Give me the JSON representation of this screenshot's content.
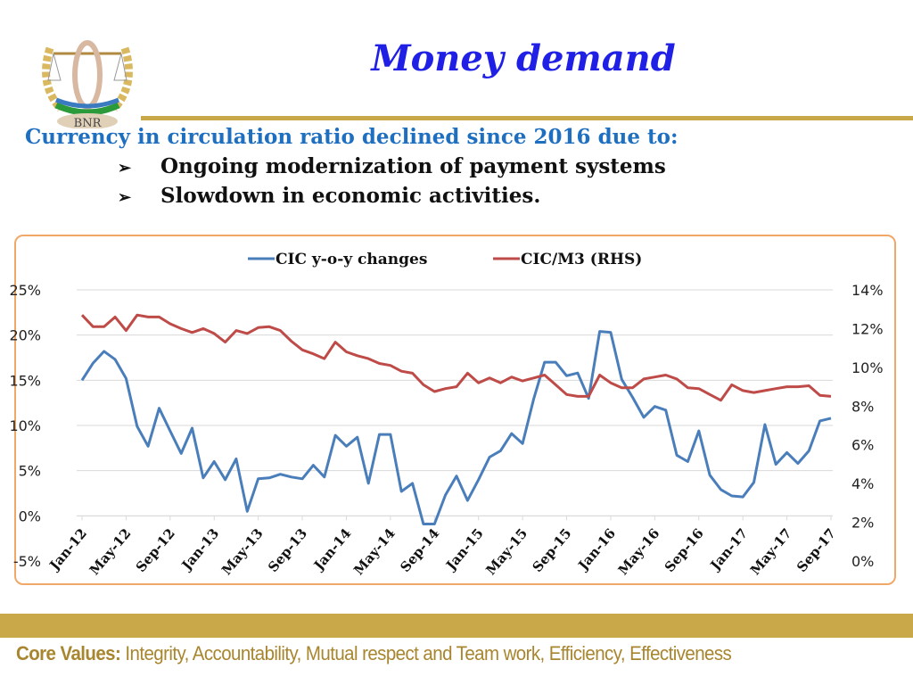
{
  "slide": {
    "title": "Money demand",
    "subtitle": "Currency in circulation ratio declined since 2016 due to:",
    "bullets": [
      "Ongoing modernization of payment systems",
      "Slowdown in economic activities."
    ],
    "bullet_icon": "arrow-right-icon",
    "logo_text": "BNR",
    "footer_label": "Core Values:",
    "footer_text": "Integrity, Accountability, Mutual respect and Team work, Efficiency, Effectiveness",
    "colors": {
      "title": "#1f1fe6",
      "subtitle": "#1f6fc0",
      "gold": "#c9a84a",
      "chart_border": "#f0a868"
    }
  },
  "chart_data": {
    "type": "line",
    "title": "",
    "legend_position": "top",
    "grid": true,
    "categories": [
      "Jan-12",
      "Feb-12",
      "Mar-12",
      "Apr-12",
      "May-12",
      "Jun-12",
      "Jul-12",
      "Aug-12",
      "Sep-12",
      "Oct-12",
      "Nov-12",
      "Dec-12",
      "Jan-13",
      "Feb-13",
      "Mar-13",
      "Apr-13",
      "May-13",
      "Jun-13",
      "Jul-13",
      "Aug-13",
      "Sep-13",
      "Oct-13",
      "Nov-13",
      "Dec-13",
      "Jan-14",
      "Feb-14",
      "Mar-14",
      "Apr-14",
      "May-14",
      "Jun-14",
      "Jul-14",
      "Aug-14",
      "Sep-14",
      "Oct-14",
      "Nov-14",
      "Dec-14",
      "Jan-15",
      "Feb-15",
      "Mar-15",
      "Apr-15",
      "May-15",
      "Jun-15",
      "Jul-15",
      "Aug-15",
      "Sep-15",
      "Oct-15",
      "Nov-15",
      "Dec-15",
      "Jan-16",
      "Feb-16",
      "Mar-16",
      "Apr-16",
      "May-16",
      "Jun-16",
      "Jul-16",
      "Aug-16",
      "Sep-16",
      "Oct-16",
      "Nov-16",
      "Dec-16",
      "Jan-17",
      "Feb-17",
      "Mar-17",
      "Apr-17",
      "May-17",
      "Jun-17",
      "Jul-17",
      "Aug-17",
      "Sep-17"
    ],
    "x_tick_labels": [
      "Jan-12",
      "May-12",
      "Sep-12",
      "Jan-13",
      "May-13",
      "Sep-13",
      "Jan-14",
      "May-14",
      "Sep-14",
      "Jan-15",
      "May-15",
      "Sep-15",
      "Jan-16",
      "May-16",
      "Sep-16",
      "Jan-17",
      "May-17",
      "Sep-17"
    ],
    "y_left": {
      "min": -5,
      "max": 25,
      "ticks": [
        "-5%",
        "0%",
        "5%",
        "10%",
        "15%",
        "20%",
        "25%"
      ]
    },
    "y_right": {
      "min": 0,
      "max": 14,
      "ticks": [
        "0%",
        "2%",
        "4%",
        "6%",
        "8%",
        "10%",
        "12%",
        "14%"
      ]
    },
    "series": [
      {
        "name": "CIC y-o-y changes",
        "axis": "left",
        "color": "#4a7ebb",
        "values": [
          15.0,
          16.9,
          18.2,
          17.3,
          15.2,
          9.9,
          7.7,
          11.9,
          9.4,
          6.9,
          9.7,
          4.2,
          6.0,
          4.0,
          6.3,
          0.5,
          4.1,
          4.2,
          4.6,
          4.3,
          4.1,
          5.6,
          4.3,
          8.9,
          7.7,
          8.7,
          3.6,
          9.0,
          9.0,
          2.7,
          3.6,
          -0.9,
          -0.9,
          2.3,
          4.4,
          1.7,
          4.0,
          6.5,
          7.2,
          9.1,
          8.0,
          12.9,
          17.0,
          17.0,
          15.5,
          15.8,
          13.0,
          20.4,
          20.3,
          15.1,
          13.1,
          10.9,
          12.1,
          11.7,
          6.7,
          6.0,
          9.4,
          4.5,
          2.9,
          2.2,
          2.1,
          3.7,
          10.1,
          5.7,
          7.0,
          5.8,
          7.2,
          10.5,
          10.8
        ]
      },
      {
        "name": "CIC/M3 (RHS)",
        "axis": "right",
        "color": "#be4b48",
        "values": [
          12.7,
          12.1,
          12.1,
          12.6,
          11.9,
          12.7,
          12.6,
          12.6,
          12.25,
          12.0,
          11.8,
          12.0,
          11.75,
          11.3,
          11.9,
          11.75,
          12.05,
          12.1,
          11.9,
          11.35,
          10.9,
          10.7,
          10.45,
          11.3,
          10.8,
          10.6,
          10.45,
          10.2,
          10.1,
          9.8,
          9.7,
          9.1,
          8.75,
          8.9,
          9.0,
          9.7,
          9.2,
          9.45,
          9.2,
          9.5,
          9.3,
          9.45,
          9.6,
          9.1,
          8.6,
          8.5,
          8.5,
          9.6,
          9.2,
          8.95,
          8.95,
          9.4,
          9.5,
          9.6,
          9.4,
          8.95,
          8.9,
          8.6,
          8.3,
          9.1,
          8.8,
          8.7,
          8.8,
          8.9,
          9.0,
          9.0,
          9.05,
          8.55,
          8.5
        ]
      }
    ]
  }
}
